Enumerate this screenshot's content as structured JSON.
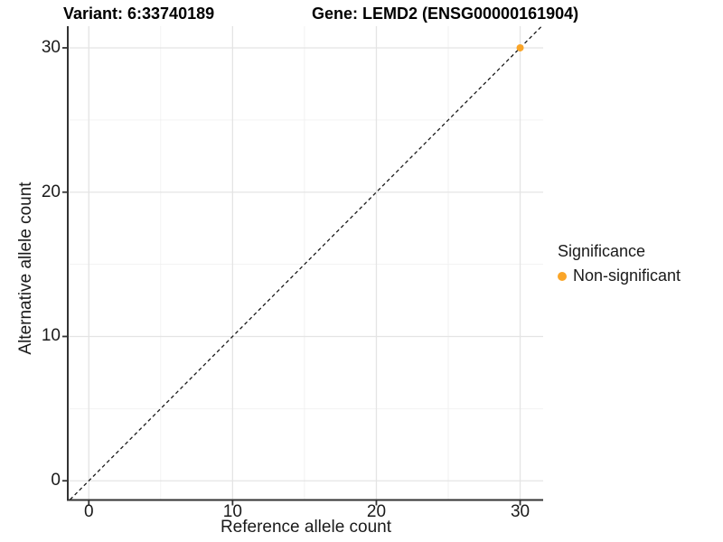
{
  "header": {
    "variant_title": "Variant: 6:33740189",
    "gene_title": "Gene: LEMD2 (ENSG00000161904)"
  },
  "axes": {
    "x": {
      "title": "Reference allele count",
      "tick_labels": [
        "0",
        "10",
        "20",
        "30"
      ],
      "tick_values": [
        0,
        10,
        20,
        30
      ],
      "minor_tick_values": [
        5,
        15,
        25
      ],
      "range": [
        -1.4,
        31.6
      ]
    },
    "y": {
      "title": "Alternative allele count",
      "tick_labels": [
        "0",
        "10",
        "20",
        "30"
      ],
      "tick_values": [
        0,
        10,
        20,
        30
      ],
      "minor_tick_values": [
        5,
        15,
        25
      ],
      "range": [
        -1.3,
        31.5
      ]
    }
  },
  "legend": {
    "title": "Significance",
    "items": [
      {
        "label": "Non-significant",
        "color": "#FAA528"
      }
    ]
  },
  "colors": {
    "point_orange": "#FAA528",
    "major_grid": "#E4E4E4",
    "minor_grid": "#EFEFEF",
    "axis_line": "#333333",
    "dashed_line": "#1A1A1A",
    "text": "#1A1A1A"
  },
  "chart_data": {
    "type": "scatter",
    "title": "Variant: 6:33740189   |   Gene: LEMD2 (ENSG00000161904)",
    "xlabel": "Reference allele count",
    "ylabel": "Alternative allele count",
    "xlim": [
      -1.4,
      31.6
    ],
    "ylim": [
      -1.3,
      31.5
    ],
    "x_ticks": [
      0,
      10,
      20,
      30
    ],
    "y_ticks": [
      0,
      10,
      20,
      30
    ],
    "grid": "major+minor",
    "legend_position": "right",
    "series": [
      {
        "name": "Non-significant",
        "color": "#FAA528",
        "marker": "circle",
        "points": [
          {
            "x": 30,
            "y": 30
          }
        ]
      }
    ],
    "reference_line": {
      "kind": "identity",
      "slope": 1,
      "intercept": 0,
      "style": "dashed",
      "color": "#1A1A1A"
    }
  }
}
